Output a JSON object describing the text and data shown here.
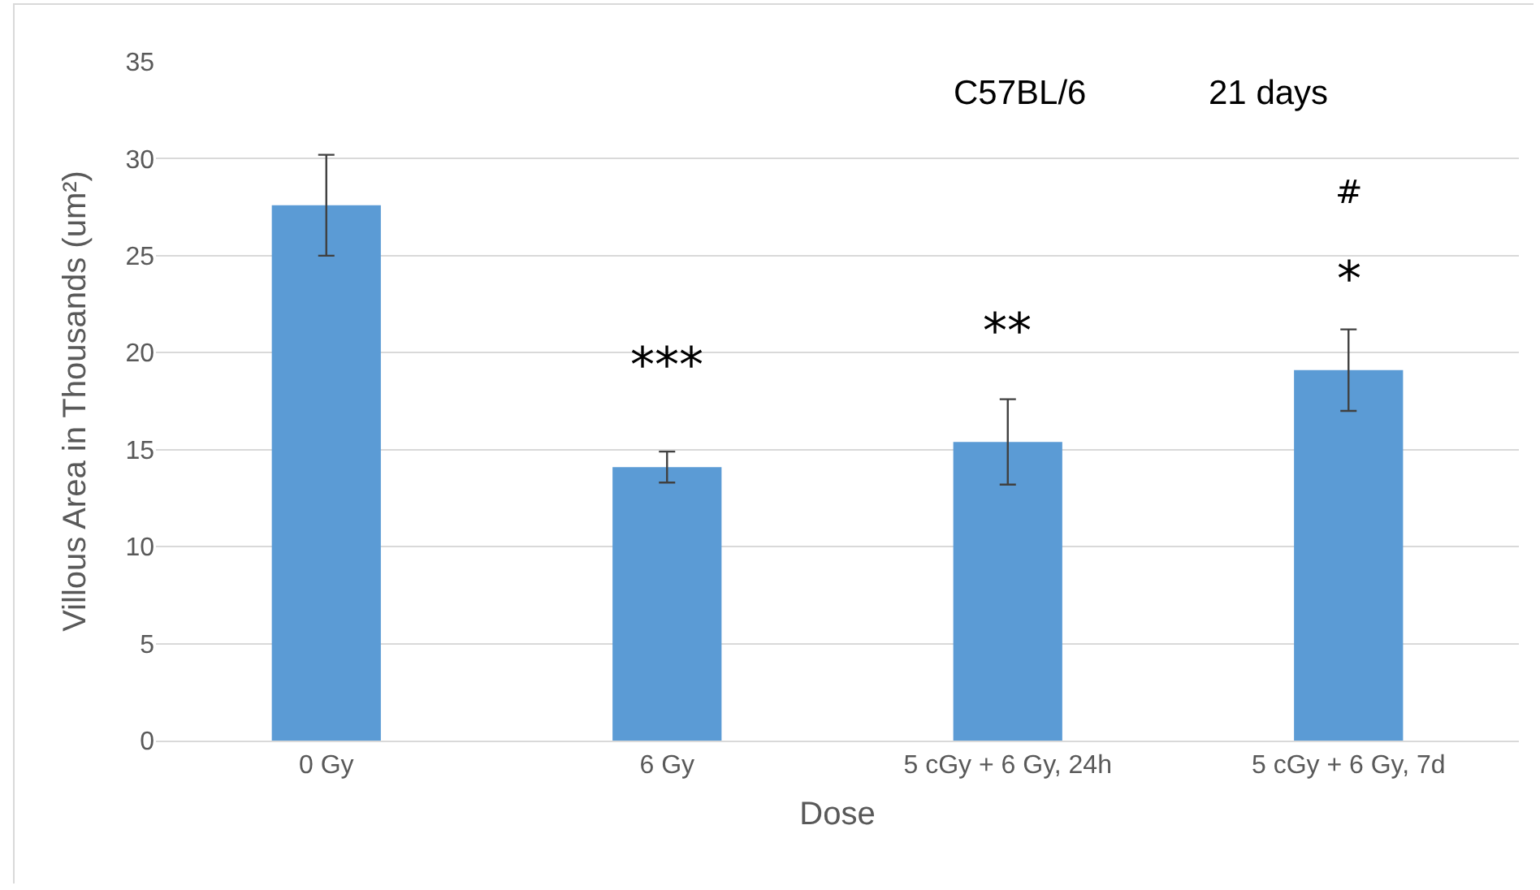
{
  "chart_data": {
    "type": "bar",
    "xlabel": "Dose",
    "ylabel": "Villous Area in Thousands (um²)",
    "categories": [
      "0 Gy",
      "6 Gy",
      "5 cGy + 6 Gy, 24h",
      "5 cGy + 6 Gy, 7d"
    ],
    "values": [
      27.6,
      14.1,
      15.4,
      19.1
    ],
    "errors": [
      2.6,
      0.8,
      2.2,
      2.1
    ],
    "color": "#5b9bd5",
    "ylim": [
      0,
      35
    ],
    "yticks": [
      0,
      5,
      10,
      15,
      20,
      25,
      30,
      35
    ],
    "grid": "y",
    "annotations": [
      "C57BL/6",
      "21 days",
      "***",
      "**",
      "*",
      "#"
    ]
  }
}
